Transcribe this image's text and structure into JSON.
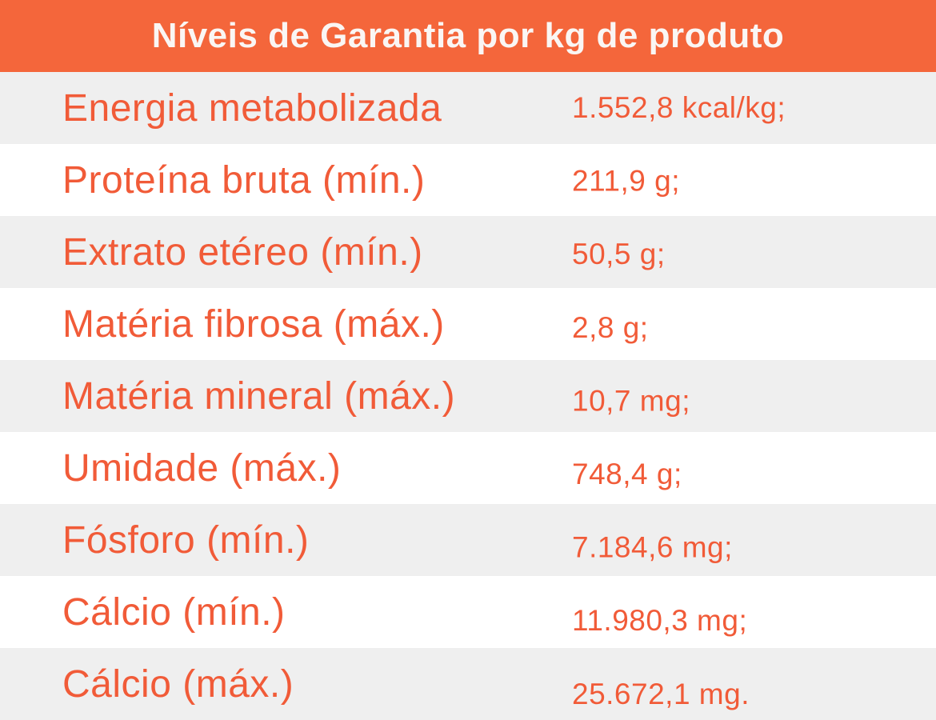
{
  "header": {
    "title": "Níveis de Garantia por kg de produto"
  },
  "colors": {
    "header_bg": "#F4663B",
    "text_orange": "#F15B38",
    "row_alt_bg": "#EFEFEF",
    "row_bg": "#FFFFFF",
    "header_text": "#FAF6F4"
  },
  "rows": [
    {
      "label": "Energia metabolizada",
      "value": "1.552,8 kcal/kg;"
    },
    {
      "label": "Proteína bruta (mín.)",
      "value": "211,9 g;"
    },
    {
      "label": "Extrato etéreo (mín.)",
      "value": "50,5 g;"
    },
    {
      "label": "Matéria fibrosa (máx.)",
      "value": "2,8 g;"
    },
    {
      "label": "Matéria mineral (máx.)",
      "value": "10,7 mg;"
    },
    {
      "label": "Umidade (máx.)",
      "value": "748,4 g;"
    },
    {
      "label": "Fósforo (mín.)",
      "value": "7.184,6 mg;"
    },
    {
      "label": "Cálcio (mín.)",
      "value": "11.980,3 mg;"
    },
    {
      "label": "Cálcio (máx.)",
      "value": "25.672,1 mg."
    }
  ]
}
